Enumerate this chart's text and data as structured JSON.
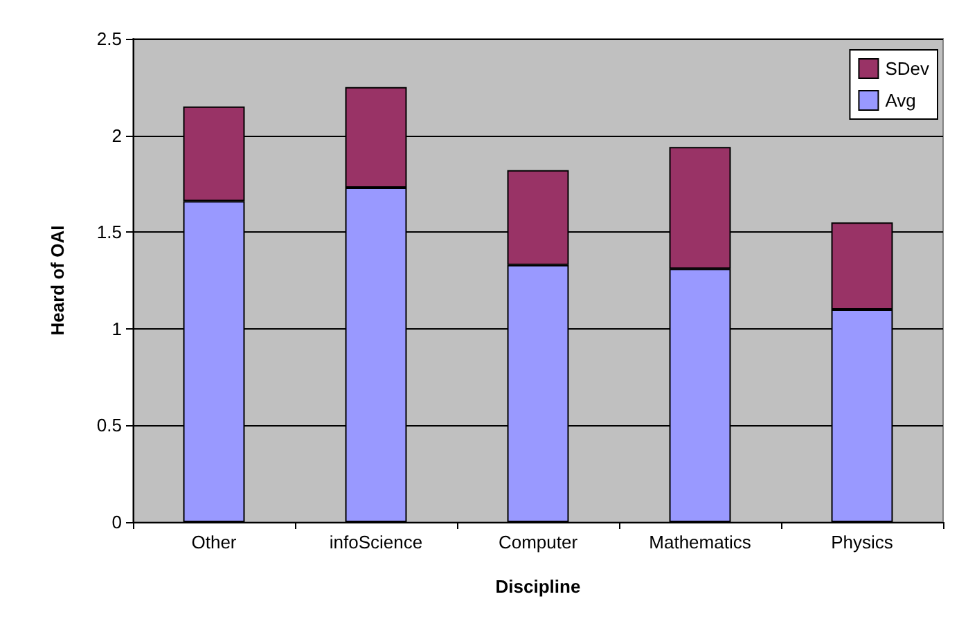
{
  "chart_data": {
    "type": "bar",
    "xlabel": "Discipline",
    "ylabel": "Heard of OAI",
    "categories": [
      "Other",
      "infoScience",
      "Computer",
      "Mathematics",
      "Physics"
    ],
    "series": [
      {
        "name": "Avg",
        "color": "#9999ff",
        "values": [
          1.66,
          1.73,
          1.33,
          1.31,
          1.1
        ]
      },
      {
        "name": "SDev",
        "color": "#993366",
        "values": [
          0.49,
          0.52,
          0.49,
          0.63,
          0.45
        ]
      }
    ],
    "stacked": true,
    "ylim": [
      0,
      2.5
    ],
    "yticks": [
      0,
      0.5,
      1,
      1.5,
      2,
      2.5
    ],
    "grid": "y",
    "legend": "top right"
  }
}
